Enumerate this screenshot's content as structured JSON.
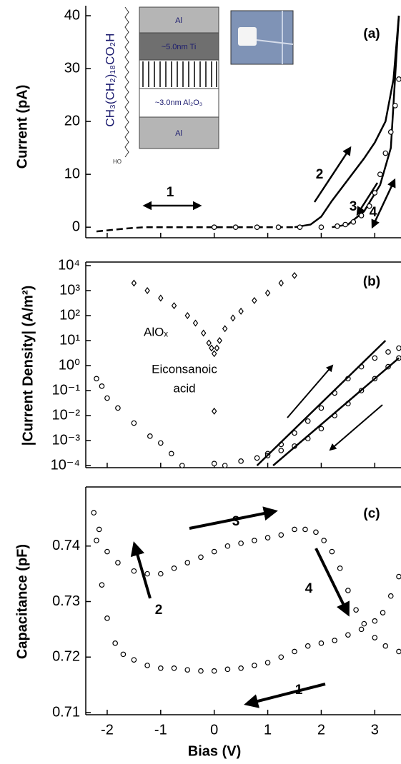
{
  "chart_data": [
    {
      "type": "line",
      "ylabel": "Current  (pA)",
      "xlim": [
        -2.4,
        3.45
      ],
      "xticks": [
        -2,
        -1,
        0,
        1,
        2,
        3
      ],
      "ylim": [
        -2,
        40
      ],
      "yticks": [
        0,
        10,
        20,
        30,
        40
      ],
      "log_y": false,
      "annotations": [
        "(a)",
        "1",
        "2",
        "3",
        "4"
      ],
      "inset_labels": [
        "Al",
        "~5.0nm Ti",
        "~3.0nm Al₂O₃",
        "Al",
        "CH₃(CH₂)₁₈CO₂H",
        "HO"
      ],
      "series": [
        {
          "color": "#000000",
          "line": "dashed",
          "marker": "none",
          "x": [
            -2.2,
            -1.9,
            -1.6,
            -1.3,
            -1.0,
            -0.5,
            0,
            0.5,
            1.0,
            1.5
          ],
          "values": [
            -0.8,
            -0.5,
            -0.2,
            0,
            0,
            0,
            0,
            0,
            0,
            0
          ]
        },
        {
          "color": "#000000",
          "line": "solid",
          "marker": "none",
          "x": [
            1.5,
            1.8,
            2.0,
            2.2,
            2.5,
            2.8,
            3.0,
            3.2,
            3.35,
            3.45
          ],
          "values": [
            0,
            0.5,
            2,
            5,
            9,
            13,
            16,
            20,
            28,
            40
          ]
        },
        {
          "color": "#000000",
          "line": "solid",
          "marker": "none",
          "x": [
            2.2,
            2.5,
            2.8,
            3.1,
            3.3,
            3.45
          ],
          "values": [
            0,
            0.5,
            3,
            8,
            15,
            40
          ]
        },
        {
          "color": "#000000",
          "line": null,
          "marker": "circle",
          "x": [
            0,
            0.4,
            0.8,
            1.2,
            1.6,
            2.0,
            2.3,
            2.45,
            2.6,
            2.75,
            2.9,
            3.0,
            3.1,
            3.2,
            3.3,
            3.38,
            3.45
          ],
          "values": [
            0,
            0,
            0,
            0,
            0,
            0,
            0.2,
            0.5,
            1,
            2.2,
            4,
            6.5,
            10,
            14,
            18,
            23,
            28
          ]
        }
      ]
    },
    {
      "type": "line",
      "ylabel": "|Current Density| (A/m²)",
      "xlim": [
        -2.4,
        3.45
      ],
      "xticks": [
        -2,
        -1,
        0,
        1,
        2,
        3
      ],
      "ylim": [
        0.0001,
        10000
      ],
      "log_y": true,
      "yticks": [
        {
          "value": 0.0001,
          "label": "10⁻⁴"
        },
        {
          "value": 0.001,
          "label": "10⁻³"
        },
        {
          "value": 0.01,
          "label": "10⁻²"
        },
        {
          "value": 0.1,
          "label": "10⁻¹"
        },
        {
          "value": 1,
          "label": "10⁰"
        },
        {
          "value": 10,
          "label": "10¹"
        },
        {
          "value": 100,
          "label": "10²"
        },
        {
          "value": 1000,
          "label": "10³"
        },
        {
          "value": 10000,
          "label": "10⁴"
        }
      ],
      "annotations": [
        "(b)",
        "AlOₓ",
        "Eiconsanoic",
        "acid"
      ],
      "series": [
        {
          "color": "#000000",
          "line": null,
          "marker": "diamond",
          "x": [
            -1.5,
            -1.25,
            -1.0,
            -0.75,
            -0.5,
            -0.35,
            -0.2,
            -0.1,
            -0.05,
            0,
            0.05,
            0.1,
            0.2,
            0.35,
            0.5,
            0.75,
            1.0,
            1.25,
            1.5
          ],
          "values": [
            2000,
            1000,
            500,
            250,
            100,
            50,
            20,
            8,
            5,
            3,
            5,
            10,
            30,
            80,
            150,
            400,
            800,
            2000,
            4000
          ]
        },
        {
          "color": "#000000",
          "line": null,
          "marker": "circle",
          "x": [
            -2.2,
            -2.1,
            -2.0,
            -1.8,
            -1.5,
            -1.2,
            -1.0,
            -0.8,
            -0.6
          ],
          "values": [
            0.3,
            0.15,
            0.05,
            0.02,
            0.005,
            0.0015,
            0.0008,
            0.0003,
            0.0001
          ]
        },
        {
          "color": "#000000",
          "line": null,
          "marker": "circle",
          "x": [
            0.2,
            0.5,
            0.8,
            1.0,
            1.25,
            1.5,
            1.75,
            2.0,
            2.25,
            2.5,
            2.75,
            3.0,
            3.25,
            3.45
          ],
          "values": [
            0.0001,
            0.00015,
            0.0002,
            0.0003,
            0.0007,
            0.002,
            0.006,
            0.02,
            0.08,
            0.3,
            0.9,
            2,
            3.5,
            5
          ]
        },
        {
          "color": "#000000",
          "line": null,
          "marker": "circle",
          "x": [
            3.45,
            3.25,
            3.0,
            2.75,
            2.5,
            2.25,
            2.0,
            1.75,
            1.5,
            1.25,
            1.0
          ],
          "values": [
            2,
            0.9,
            0.3,
            0.1,
            0.03,
            0.01,
            0.003,
            0.0012,
            0.0006,
            0.0004,
            0.00025
          ]
        },
        {
          "color": "#000000",
          "line": null,
          "marker": "diamond",
          "x": [
            0
          ],
          "values": [
            0.015
          ]
        },
        {
          "color": "#000000",
          "line": null,
          "marker": "circle",
          "x": [
            0
          ],
          "values": [
            0.00012
          ]
        },
        {
          "color": "#000000",
          "line": "solid",
          "marker": "none",
          "x": [
            0.8,
            3.2
          ],
          "values": [
            0.0001,
            10
          ]
        },
        {
          "color": "#000000",
          "line": "solid",
          "marker": "none",
          "x": [
            1.1,
            3.45
          ],
          "values": [
            0.0001,
            2
          ]
        }
      ]
    },
    {
      "type": "line",
      "ylabel": "Capacitance (pF)",
      "xlabel": "Bias (V)",
      "xlim": [
        -2.4,
        3.45
      ],
      "xticks": [
        -2,
        -1,
        0,
        1,
        2,
        3
      ],
      "ylim": [
        0.71,
        0.75
      ],
      "yticks": [
        0.71,
        0.72,
        0.73,
        0.74
      ],
      "log_y": false,
      "annotations": [
        "(c)",
        "3",
        "2",
        "4",
        "1"
      ],
      "series": [
        {
          "color": "#000000",
          "line": null,
          "marker": "circle",
          "x": [
            -2.25,
            -2.15,
            -2.0,
            -1.8,
            -1.5,
            -1.25,
            -1.0,
            -0.75,
            -0.5,
            -0.25,
            0,
            0.25,
            0.5,
            0.75,
            1.0,
            1.25,
            1.5,
            1.7,
            1.9,
            2.05,
            2.2,
            2.35,
            2.5,
            2.65,
            2.8,
            3.0,
            3.2,
            3.45
          ],
          "values": [
            0.746,
            0.743,
            0.739,
            0.737,
            0.7355,
            0.735,
            0.735,
            0.736,
            0.737,
            0.738,
            0.739,
            0.74,
            0.7405,
            0.741,
            0.7415,
            0.742,
            0.743,
            0.743,
            0.7425,
            0.741,
            0.739,
            0.736,
            0.732,
            0.7285,
            0.726,
            0.7235,
            0.722,
            0.721
          ]
        },
        {
          "color": "#000000",
          "line": null,
          "marker": "circle",
          "x": [
            3.45,
            3.3,
            3.15,
            3.0,
            2.75,
            2.5,
            2.25,
            2.0,
            1.75,
            1.5,
            1.25,
            1.0,
            0.75,
            0.5,
            0.25,
            0,
            -0.25,
            -0.5,
            -0.75,
            -1.0,
            -1.25,
            -1.5,
            -1.7,
            -1.85,
            -2.0,
            -2.1,
            -2.2
          ],
          "values": [
            0.7345,
            0.731,
            0.728,
            0.7265,
            0.725,
            0.724,
            0.723,
            0.7225,
            0.722,
            0.721,
            0.72,
            0.719,
            0.7185,
            0.718,
            0.7178,
            0.7175,
            0.7175,
            0.7177,
            0.718,
            0.718,
            0.7185,
            0.7195,
            0.7205,
            0.7225,
            0.727,
            0.733,
            0.741
          ]
        }
      ]
    }
  ]
}
